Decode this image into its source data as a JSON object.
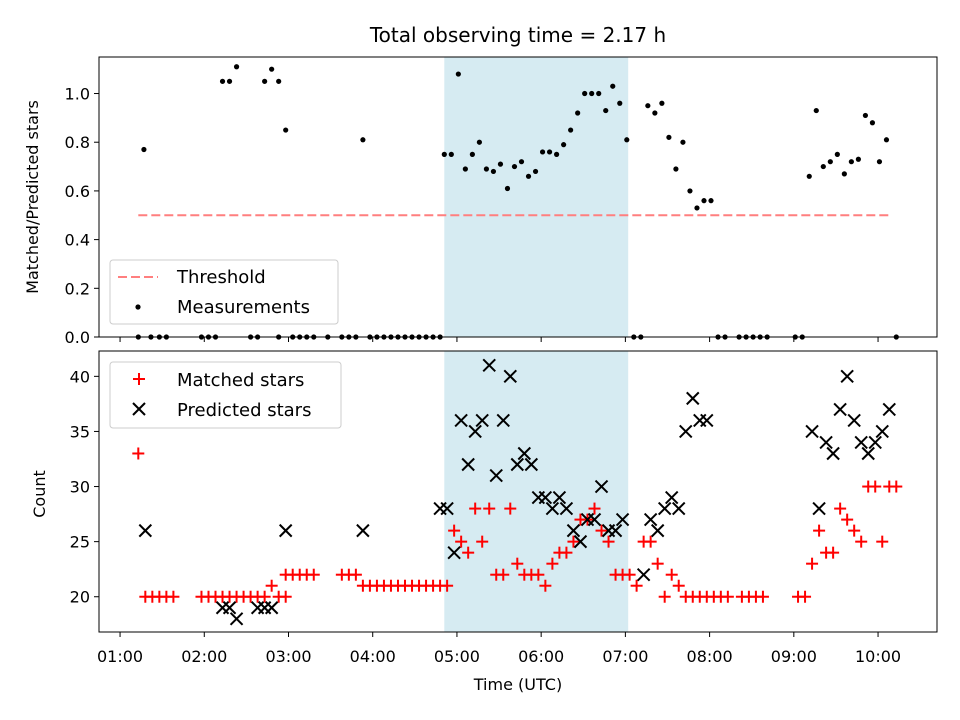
{
  "chart_data": [
    {
      "type": "scatter",
      "title": "Total observing time = 2.17 h",
      "xlabel": "",
      "ylabel": "Matched/Predicted stars",
      "ylim": [
        0,
        1.15
      ],
      "yticks": [
        "0.0",
        "0.2",
        "0.4",
        "0.6",
        "0.8",
        "1.0"
      ],
      "highlight_span": [
        "04:51",
        "07:02"
      ],
      "legend_position": "lower-left",
      "threshold": {
        "name": "Threshold",
        "y": 0.5,
        "x_range": [
          "01:13",
          "10:10"
        ],
        "color": "#ff7f7f"
      },
      "series": [
        {
          "name": "Measurements",
          "color": "#000000",
          "points": [
            [
              "01:13",
              0
            ],
            [
              "01:17",
              0.77
            ],
            [
              "01:22",
              0
            ],
            [
              "01:28",
              0
            ],
            [
              "01:33",
              0
            ],
            [
              "01:58",
              0
            ],
            [
              "02:03",
              0
            ],
            [
              "02:08",
              0
            ],
            [
              "02:13",
              1.05
            ],
            [
              "02:18",
              1.05
            ],
            [
              "02:23",
              1.11
            ],
            [
              "02:33",
              0
            ],
            [
              "02:38",
              0
            ],
            [
              "02:43",
              1.05
            ],
            [
              "02:48",
              1.1
            ],
            [
              "02:53",
              1.05
            ],
            [
              "02:53",
              0
            ],
            [
              "02:58",
              0.85
            ],
            [
              "03:03",
              0
            ],
            [
              "03:08",
              0
            ],
            [
              "03:13",
              0
            ],
            [
              "03:18",
              0
            ],
            [
              "03:28",
              0
            ],
            [
              "03:38",
              0
            ],
            [
              "03:43",
              0
            ],
            [
              "03:48",
              0
            ],
            [
              "03:53",
              0.81
            ],
            [
              "03:58",
              0
            ],
            [
              "04:03",
              0
            ],
            [
              "04:08",
              0
            ],
            [
              "04:13",
              0
            ],
            [
              "04:18",
              0
            ],
            [
              "04:23",
              0
            ],
            [
              "04:28",
              0
            ],
            [
              "04:33",
              0
            ],
            [
              "04:38",
              0
            ],
            [
              "04:43",
              0
            ],
            [
              "04:48",
              0
            ],
            [
              "04:51",
              0.75
            ],
            [
              "04:56",
              0.75
            ],
            [
              "05:01",
              1.08
            ],
            [
              "05:06",
              0.69
            ],
            [
              "05:11",
              0.75
            ],
            [
              "05:16",
              0.8
            ],
            [
              "05:21",
              0.69
            ],
            [
              "05:26",
              0.68
            ],
            [
              "05:31",
              0.71
            ],
            [
              "05:36",
              0.61
            ],
            [
              "05:41",
              0.7
            ],
            [
              "05:46",
              0.72
            ],
            [
              "05:51",
              0.66
            ],
            [
              "05:56",
              0.68
            ],
            [
              "06:01",
              0.76
            ],
            [
              "06:06",
              0.76
            ],
            [
              "06:11",
              0.75
            ],
            [
              "06:16",
              0.79
            ],
            [
              "06:21",
              0.85
            ],
            [
              "06:26",
              0.92
            ],
            [
              "06:31",
              1.0
            ],
            [
              "06:36",
              1.0
            ],
            [
              "06:41",
              1.0
            ],
            [
              "06:46",
              0.93
            ],
            [
              "06:51",
              1.03
            ],
            [
              "06:56",
              0.96
            ],
            [
              "07:01",
              0.81
            ],
            [
              "07:06",
              0
            ],
            [
              "07:11",
              0
            ],
            [
              "07:16",
              0.95
            ],
            [
              "07:21",
              0.92
            ],
            [
              "07:26",
              0.96
            ],
            [
              "07:31",
              0.82
            ],
            [
              "07:36",
              0.69
            ],
            [
              "07:41",
              0.8
            ],
            [
              "07:46",
              0.6
            ],
            [
              "07:51",
              0.53
            ],
            [
              "07:56",
              0.56
            ],
            [
              "08:01",
              0.56
            ],
            [
              "08:06",
              0
            ],
            [
              "08:11",
              0
            ],
            [
              "08:21",
              0
            ],
            [
              "08:26",
              0
            ],
            [
              "08:31",
              0
            ],
            [
              "08:36",
              0
            ],
            [
              "08:41",
              0
            ],
            [
              "09:01",
              0
            ],
            [
              "09:06",
              0
            ],
            [
              "09:11",
              0.66
            ],
            [
              "09:16",
              0.93
            ],
            [
              "09:21",
              0.7
            ],
            [
              "09:26",
              0.72
            ],
            [
              "09:31",
              0.75
            ],
            [
              "09:36",
              0.67
            ],
            [
              "09:41",
              0.72
            ],
            [
              "09:46",
              0.73
            ],
            [
              "09:51",
              0.91
            ],
            [
              "09:56",
              0.88
            ],
            [
              "10:01",
              0.72
            ],
            [
              "10:06",
              0.81
            ],
            [
              "10:13",
              0
            ]
          ]
        }
      ]
    },
    {
      "type": "scatter",
      "title": "",
      "xlabel": "Time (UTC)",
      "ylabel": "Count",
      "ylim": [
        16.8,
        42.3
      ],
      "yticks": [
        "20",
        "25",
        "30",
        "35",
        "40"
      ],
      "xticks": [
        "01:00",
        "02:00",
        "03:00",
        "04:00",
        "05:00",
        "06:00",
        "07:00",
        "08:00",
        "09:00",
        "10:00"
      ],
      "highlight_span": [
        "04:51",
        "07:02"
      ],
      "legend_position": "upper-left",
      "series": [
        {
          "name": "Matched stars",
          "color": "#ff0000",
          "marker": "plus",
          "points": [
            [
              "01:13",
              33
            ],
            [
              "01:18",
              20
            ],
            [
              "01:23",
              20
            ],
            [
              "01:28",
              20
            ],
            [
              "01:33",
              20
            ],
            [
              "01:38",
              20
            ],
            [
              "01:58",
              20
            ],
            [
              "02:03",
              20
            ],
            [
              "02:08",
              20
            ],
            [
              "02:13",
              20
            ],
            [
              "02:18",
              20
            ],
            [
              "02:23",
              20
            ],
            [
              "02:28",
              20
            ],
            [
              "02:33",
              20
            ],
            [
              "02:38",
              20
            ],
            [
              "02:43",
              20
            ],
            [
              "02:48",
              21
            ],
            [
              "02:53",
              20
            ],
            [
              "02:58",
              20
            ],
            [
              "02:58",
              22
            ],
            [
              "03:03",
              22
            ],
            [
              "03:08",
              22
            ],
            [
              "03:13",
              22
            ],
            [
              "03:18",
              22
            ],
            [
              "03:38",
              22
            ],
            [
              "03:43",
              22
            ],
            [
              "03:48",
              22
            ],
            [
              "03:53",
              21
            ],
            [
              "03:58",
              21
            ],
            [
              "04:03",
              21
            ],
            [
              "04:08",
              21
            ],
            [
              "04:13",
              21
            ],
            [
              "04:18",
              21
            ],
            [
              "04:23",
              21
            ],
            [
              "04:28",
              21
            ],
            [
              "04:33",
              21
            ],
            [
              "04:38",
              21
            ],
            [
              "04:43",
              21
            ],
            [
              "04:48",
              21
            ],
            [
              "04:53",
              21
            ],
            [
              "04:58",
              26
            ],
            [
              "05:03",
              25
            ],
            [
              "05:08",
              24
            ],
            [
              "05:13",
              28
            ],
            [
              "05:18",
              25
            ],
            [
              "05:23",
              28
            ],
            [
              "05:28",
              22
            ],
            [
              "05:33",
              22
            ],
            [
              "05:38",
              28
            ],
            [
              "05:43",
              23
            ],
            [
              "05:48",
              22
            ],
            [
              "05:53",
              22
            ],
            [
              "05:58",
              22
            ],
            [
              "06:03",
              21
            ],
            [
              "06:08",
              23
            ],
            [
              "06:13",
              24
            ],
            [
              "06:18",
              24
            ],
            [
              "06:23",
              25
            ],
            [
              "06:28",
              27
            ],
            [
              "06:33",
              27
            ],
            [
              "06:38",
              28
            ],
            [
              "06:43",
              26
            ],
            [
              "06:48",
              25
            ],
            [
              "06:53",
              22
            ],
            [
              "06:58",
              22
            ],
            [
              "07:03",
              22
            ],
            [
              "07:08",
              21
            ],
            [
              "07:13",
              25
            ],
            [
              "07:18",
              25
            ],
            [
              "07:23",
              23
            ],
            [
              "07:28",
              20
            ],
            [
              "07:33",
              22
            ],
            [
              "07:38",
              21
            ],
            [
              "07:43",
              20
            ],
            [
              "07:48",
              20
            ],
            [
              "07:53",
              20
            ],
            [
              "07:58",
              20
            ],
            [
              "08:03",
              20
            ],
            [
              "08:08",
              20
            ],
            [
              "08:13",
              20
            ],
            [
              "08:23",
              20
            ],
            [
              "08:28",
              20
            ],
            [
              "08:33",
              20
            ],
            [
              "08:38",
              20
            ],
            [
              "09:03",
              20
            ],
            [
              "09:08",
              20
            ],
            [
              "09:13",
              23
            ],
            [
              "09:18",
              26
            ],
            [
              "09:23",
              24
            ],
            [
              "09:28",
              24
            ],
            [
              "09:33",
              28
            ],
            [
              "09:38",
              27
            ],
            [
              "09:43",
              26
            ],
            [
              "09:48",
              25
            ],
            [
              "09:53",
              30
            ],
            [
              "09:58",
              30
            ],
            [
              "10:03",
              25
            ],
            [
              "10:08",
              30
            ],
            [
              "10:13",
              30
            ]
          ]
        },
        {
          "name": "Predicted stars",
          "color": "#000000",
          "marker": "x",
          "points": [
            [
              "01:18",
              26
            ],
            [
              "02:13",
              19
            ],
            [
              "02:18",
              19
            ],
            [
              "02:23",
              18
            ],
            [
              "02:38",
              19
            ],
            [
              "02:43",
              19
            ],
            [
              "02:48",
              19
            ],
            [
              "02:58",
              26
            ],
            [
              "03:53",
              26
            ],
            [
              "04:48",
              28
            ],
            [
              "04:53",
              28
            ],
            [
              "04:58",
              24
            ],
            [
              "05:03",
              36
            ],
            [
              "05:08",
              32
            ],
            [
              "05:13",
              35
            ],
            [
              "05:18",
              36
            ],
            [
              "05:23",
              41
            ],
            [
              "05:28",
              31
            ],
            [
              "05:33",
              36
            ],
            [
              "05:38",
              40
            ],
            [
              "05:43",
              32
            ],
            [
              "05:48",
              33
            ],
            [
              "05:53",
              32
            ],
            [
              "05:58",
              29
            ],
            [
              "06:03",
              29
            ],
            [
              "06:08",
              28
            ],
            [
              "06:13",
              29
            ],
            [
              "06:18",
              28
            ],
            [
              "06:23",
              26
            ],
            [
              "06:28",
              25
            ],
            [
              "06:33",
              27
            ],
            [
              "06:38",
              27
            ],
            [
              "06:43",
              30
            ],
            [
              "06:48",
              26
            ],
            [
              "06:53",
              26
            ],
            [
              "06:58",
              27
            ],
            [
              "07:13",
              22
            ],
            [
              "07:18",
              27
            ],
            [
              "07:23",
              26
            ],
            [
              "07:28",
              28
            ],
            [
              "07:33",
              29
            ],
            [
              "07:38",
              28
            ],
            [
              "07:43",
              35
            ],
            [
              "07:48",
              38
            ],
            [
              "07:53",
              36
            ],
            [
              "07:58",
              36
            ],
            [
              "09:13",
              35
            ],
            [
              "09:18",
              28
            ],
            [
              "09:23",
              34
            ],
            [
              "09:28",
              33
            ],
            [
              "09:33",
              37
            ],
            [
              "09:38",
              40
            ],
            [
              "09:43",
              36
            ],
            [
              "09:48",
              34
            ],
            [
              "09:53",
              33
            ],
            [
              "09:58",
              34
            ],
            [
              "10:03",
              35
            ],
            [
              "10:08",
              37
            ]
          ]
        }
      ]
    }
  ]
}
